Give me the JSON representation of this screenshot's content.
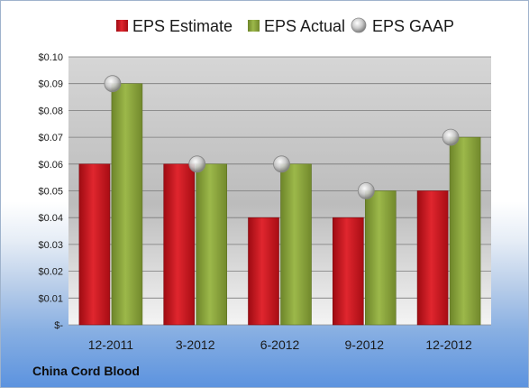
{
  "company": "China Cord Blood",
  "colors": {
    "estimate": "#c8141d",
    "actual": "#8aa33a",
    "gaap": "#bfbfbf"
  },
  "chart_data": {
    "type": "bar",
    "categories": [
      "12-2011",
      "3-2012",
      "6-2012",
      "9-2012",
      "12-2012"
    ],
    "series": [
      {
        "name": "EPS Estimate",
        "type": "bar",
        "values": [
          0.06,
          0.06,
          0.04,
          0.04,
          0.05
        ]
      },
      {
        "name": "EPS Actual",
        "type": "bar",
        "values": [
          0.09,
          0.06,
          0.06,
          0.05,
          0.07
        ]
      },
      {
        "name": "EPS GAAP",
        "type": "marker",
        "values": [
          0.09,
          0.06,
          0.06,
          0.05,
          0.07
        ]
      }
    ],
    "y_ticks": [
      "$-",
      "$0.01",
      "$0.02",
      "$0.03",
      "$0.04",
      "$0.05",
      "$0.06",
      "$0.07",
      "$0.08",
      "$0.09",
      "$0.10"
    ],
    "ylim": [
      0,
      0.1
    ],
    "grid": true,
    "legend": "top"
  }
}
